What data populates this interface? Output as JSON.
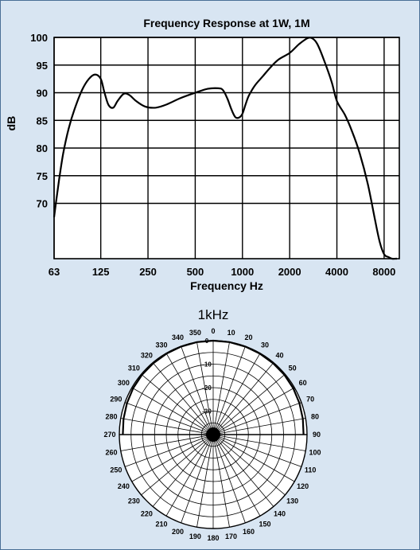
{
  "chart_data": [
    {
      "type": "line",
      "title": "Frequency Response at 1W, 1M",
      "xlabel": "Frequency Hz",
      "ylabel": "dB",
      "x_scale": "log",
      "xlim": [
        63,
        10000
      ],
      "ylim": [
        60,
        100
      ],
      "x_ticks": [
        "63",
        "125",
        "250",
        "500",
        "1000",
        "2000",
        "4000",
        "8000"
      ],
      "y_ticks": [
        "100",
        "95",
        "90",
        "85",
        "80",
        "75",
        "70"
      ],
      "grid": true,
      "series": [
        {
          "x": [
            63,
            65,
            68,
            72,
            78,
            85,
            95,
            105,
            115,
            125,
            132,
            140,
            150,
            160,
            175,
            190,
            210,
            240,
            280,
            330,
            400,
            500,
            600,
            700,
            750,
            800,
            850,
            900,
            950,
            1000,
            1050,
            1100,
            1200,
            1350,
            1500,
            1700,
            2000,
            2300,
            2600,
            2800,
            3000,
            3300,
            3700,
            4000,
            4500,
            5000,
            5600,
            6300,
            7000,
            7500,
            8000,
            8500,
            9000,
            9500,
            10000
          ],
          "y": [
            67.5,
            70.5,
            74.5,
            79,
            83.5,
            87,
            90.5,
            92.5,
            93.3,
            92.5,
            90,
            87.8,
            87.3,
            88.5,
            89.8,
            89.6,
            88.5,
            87.5,
            87.3,
            87.9,
            89.0,
            90.0,
            90.7,
            90.8,
            90.5,
            89.0,
            87.0,
            85.6,
            85.5,
            86.2,
            88.0,
            89.5,
            91.3,
            93.0,
            94.5,
            96.0,
            97.2,
            98.8,
            100.0,
            99.8,
            98.8,
            96.0,
            92.0,
            88.5,
            86.0,
            83.0,
            79.0,
            73.5,
            67.0,
            63.0,
            60.8,
            60.3,
            60.0,
            59.5,
            58.0
          ]
        }
      ]
    },
    {
      "type": "polar",
      "title": "1kHz",
      "angle_labels": [
        "0",
        "10",
        "20",
        "30",
        "40",
        "50",
        "60",
        "70",
        "80",
        "90",
        "100",
        "110",
        "120",
        "130",
        "140",
        "150",
        "160",
        "170",
        "180",
        "190",
        "200",
        "210",
        "220",
        "230",
        "240",
        "250",
        "260",
        "270",
        "280",
        "290",
        "300",
        "310",
        "320",
        "330",
        "340",
        "350"
      ],
      "radial_labels": [
        "0",
        "-10",
        "-20",
        "-30"
      ],
      "rlim": [
        -40,
        0
      ],
      "series": [
        {
          "theta": [
            270,
            280,
            290,
            300,
            310,
            320,
            330,
            340,
            350,
            0,
            10,
            20,
            30,
            40,
            50,
            60,
            70,
            80,
            90
          ],
          "r": [
            -1.5,
            -1.2,
            -0.9,
            -0.6,
            -0.4,
            -0.3,
            -0.2,
            -0.1,
            0,
            0,
            0,
            -0.1,
            -0.2,
            -0.3,
            -0.4,
            -0.6,
            -0.9,
            -1.2,
            -1.5
          ]
        }
      ]
    }
  ]
}
